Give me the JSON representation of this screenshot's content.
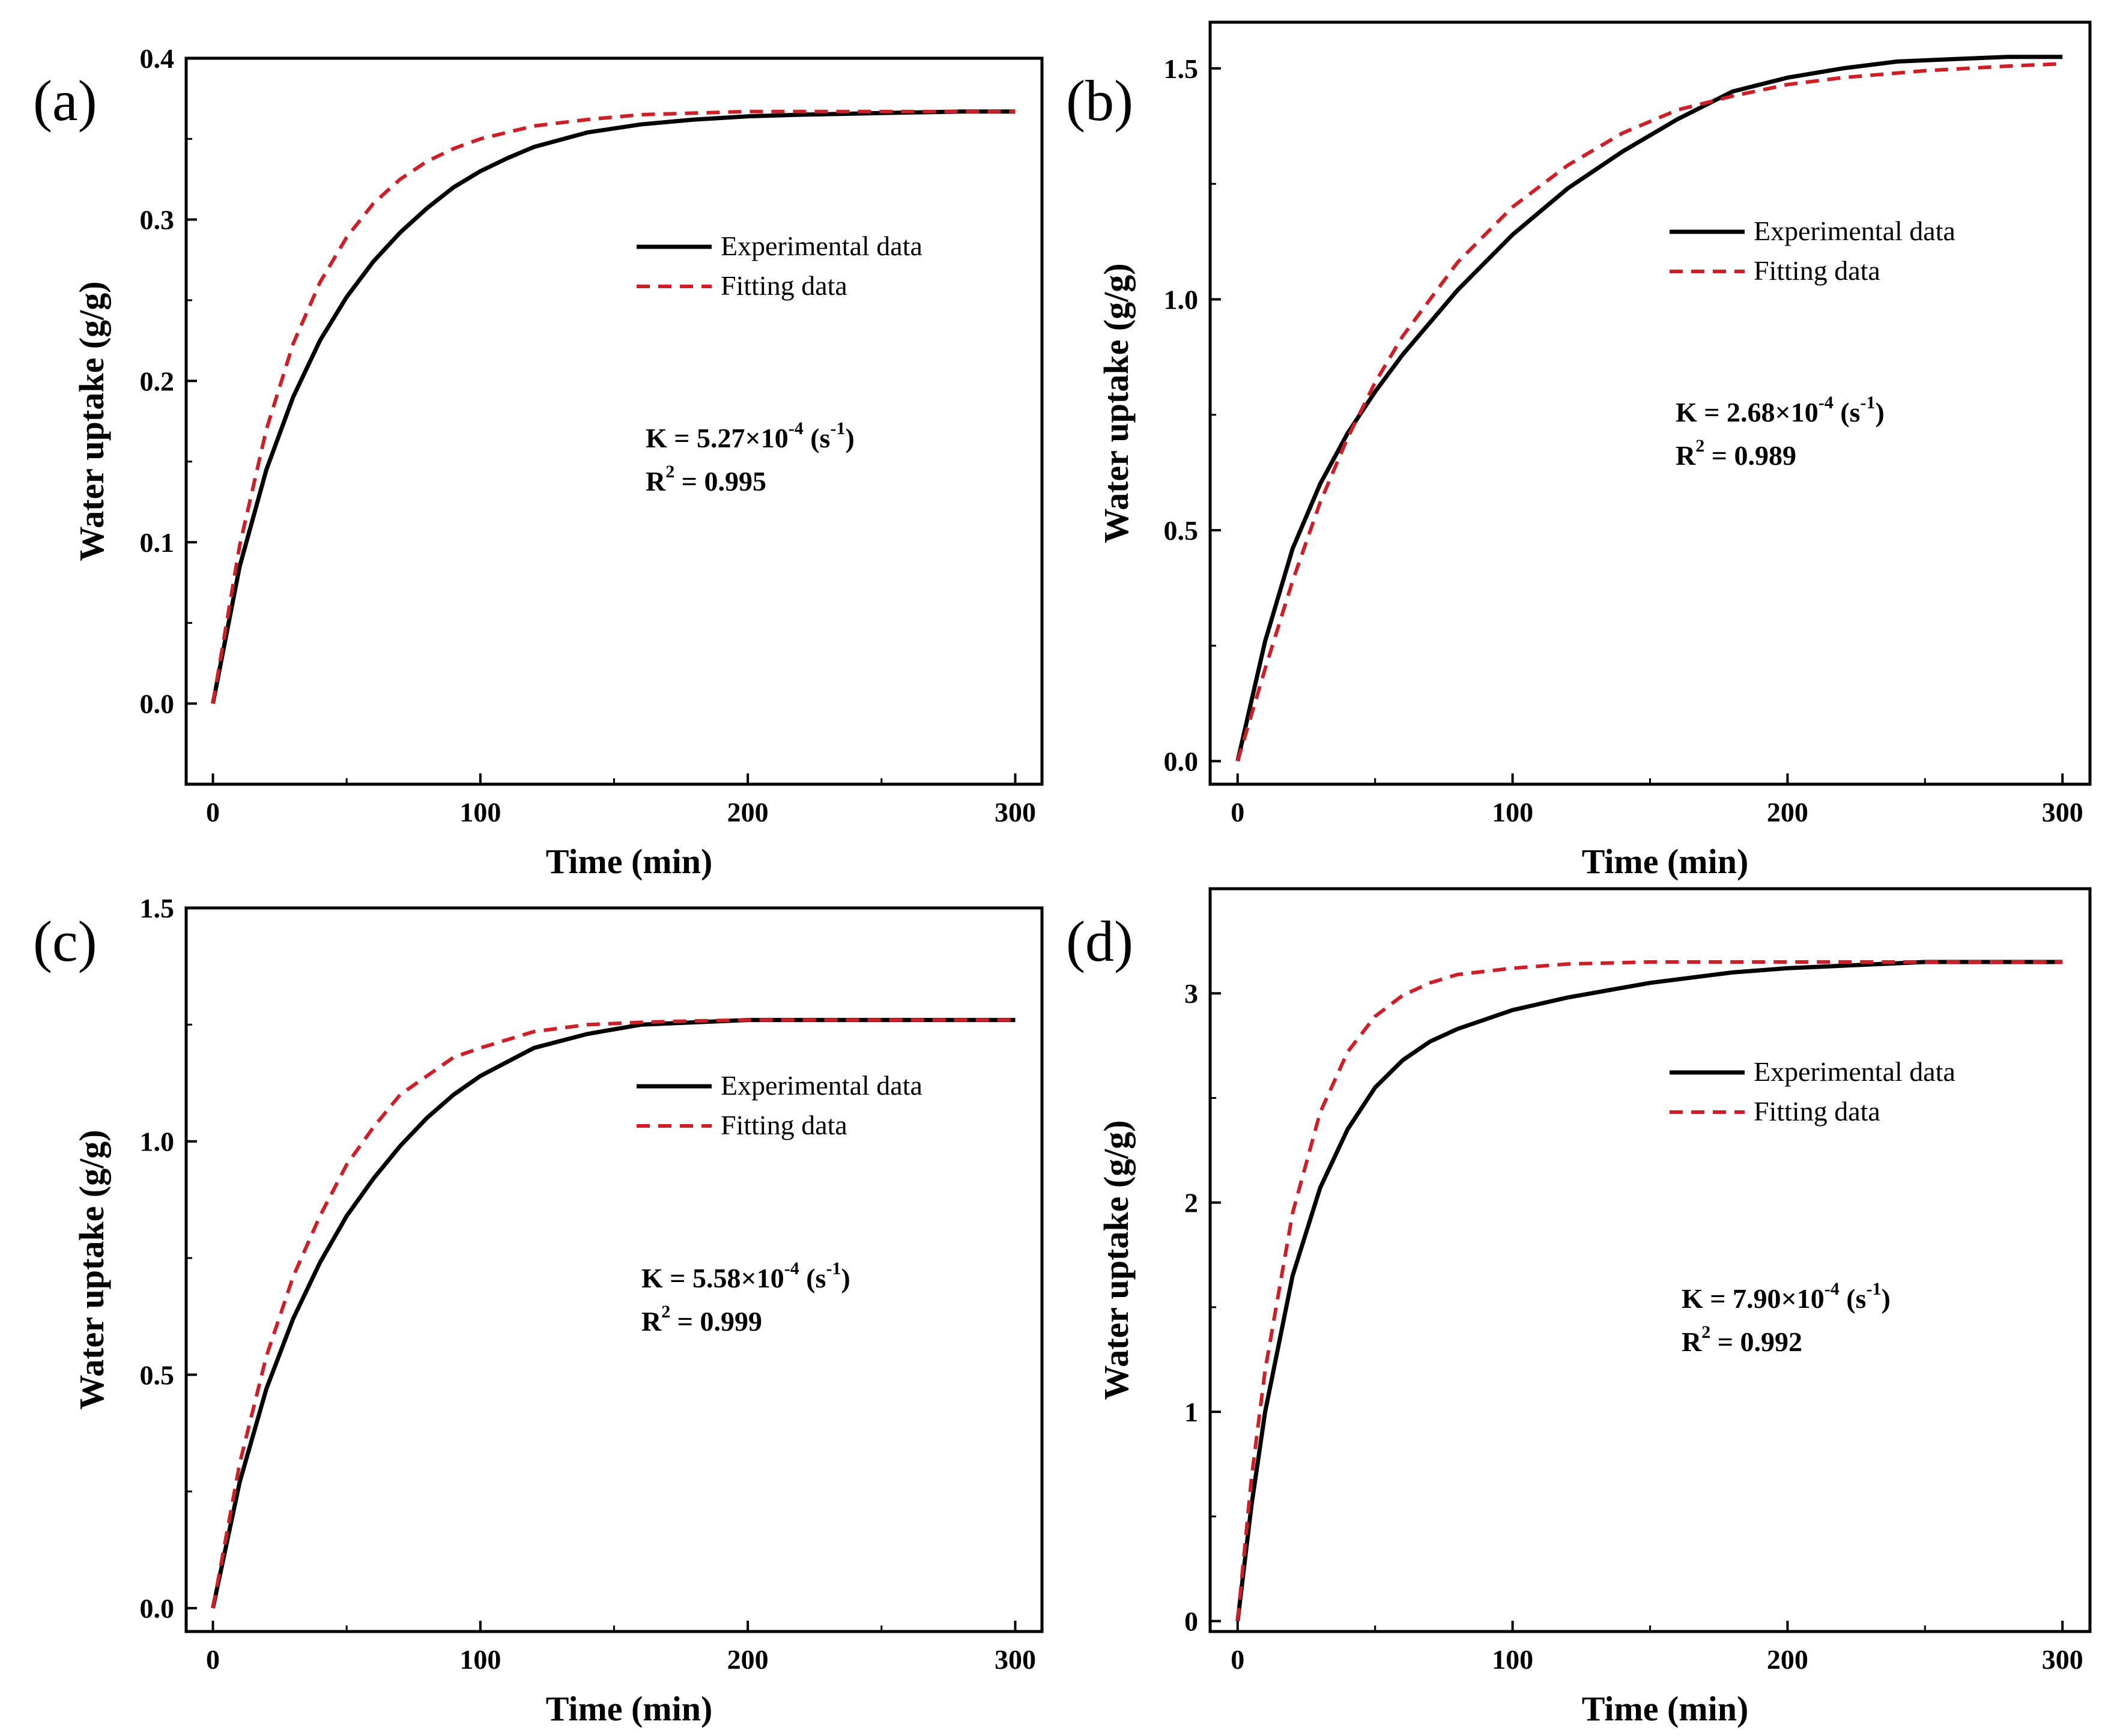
{
  "legend": {
    "experimental": "Experimental data",
    "fitting": "Fitting data"
  },
  "colors": {
    "experimental": "#000000",
    "fitting": "#cc1f28"
  },
  "chart_data": [
    {
      "panel": "(a)",
      "type": "line",
      "xlabel": "Time (min)",
      "ylabel": "Water uptake (g/g)",
      "xlim": [
        -10,
        310
      ],
      "ylim": [
        -0.05,
        0.4
      ],
      "xticks": [
        0,
        100,
        200,
        300
      ],
      "yticks": [
        0.0,
        0.1,
        0.2,
        0.3,
        0.4
      ],
      "ytick_labels": [
        "0.0",
        "0.1",
        "0.2",
        "0.3",
        "0.4"
      ],
      "legend_position": "upper-right",
      "annotation": {
        "k_prefix": "K = 5.27×10",
        "k_exp": "-4",
        "k_unit_open": " (s",
        "k_unit_exp": "-1",
        "k_unit_close": ")",
        "r2_prefix": "R",
        "r2_exp": "2",
        "r2_value": " = 0.995"
      },
      "series": [
        {
          "name": "Experimental data",
          "style": "solid",
          "x": [
            0,
            10,
            20,
            30,
            40,
            50,
            60,
            70,
            80,
            90,
            100,
            110,
            120,
            140,
            160,
            180,
            200,
            220,
            250,
            280,
            300
          ],
          "y": [
            0,
            0.085,
            0.145,
            0.19,
            0.225,
            0.252,
            0.274,
            0.292,
            0.307,
            0.32,
            0.33,
            0.338,
            0.345,
            0.354,
            0.359,
            0.362,
            0.364,
            0.365,
            0.366,
            0.367,
            0.367
          ]
        },
        {
          "name": "Fitting data",
          "style": "dashed",
          "x": [
            0,
            10,
            20,
            30,
            40,
            50,
            60,
            70,
            80,
            90,
            100,
            120,
            140,
            160,
            180,
            200,
            250,
            300
          ],
          "y": [
            0,
            0.098,
            0.17,
            0.223,
            0.261,
            0.289,
            0.31,
            0.325,
            0.336,
            0.344,
            0.35,
            0.358,
            0.362,
            0.365,
            0.366,
            0.367,
            0.367,
            0.367
          ]
        }
      ]
    },
    {
      "panel": "(b)",
      "type": "line",
      "xlabel": "Time (min)",
      "ylabel": "Water uptake (g/g)",
      "xlim": [
        -10,
        310
      ],
      "ylim": [
        -0.05,
        1.6
      ],
      "xticks": [
        0,
        100,
        200,
        300
      ],
      "yticks": [
        0.0,
        0.5,
        1.0,
        1.5
      ],
      "ytick_labels": [
        "0.0",
        "0.5",
        "1.0",
        "1.5"
      ],
      "legend_position": "upper-right",
      "annotation": {
        "k_prefix": "K = 2.68×10",
        "k_exp": "-4",
        "k_unit_open": " (s",
        "k_unit_exp": "-1",
        "k_unit_close": ")",
        "r2_prefix": "R",
        "r2_exp": "2",
        "r2_value": " = 0.989"
      },
      "series": [
        {
          "name": "Experimental data",
          "style": "solid",
          "x": [
            0,
            10,
            20,
            30,
            40,
            50,
            60,
            80,
            100,
            120,
            140,
            160,
            180,
            200,
            220,
            240,
            260,
            280,
            300
          ],
          "y": [
            0,
            0.26,
            0.46,
            0.6,
            0.71,
            0.8,
            0.88,
            1.02,
            1.14,
            1.24,
            1.32,
            1.39,
            1.45,
            1.48,
            1.5,
            1.515,
            1.52,
            1.525,
            1.525
          ]
        },
        {
          "name": "Fitting data",
          "style": "dashed",
          "x": [
            0,
            10,
            20,
            30,
            40,
            50,
            60,
            80,
            100,
            120,
            140,
            160,
            180,
            200,
            220,
            250,
            280,
            300
          ],
          "y": [
            0,
            0.2,
            0.39,
            0.56,
            0.7,
            0.82,
            0.92,
            1.08,
            1.2,
            1.29,
            1.36,
            1.41,
            1.44,
            1.465,
            1.48,
            1.495,
            1.505,
            1.51
          ]
        }
      ]
    },
    {
      "panel": "(c)",
      "type": "line",
      "xlabel": "Time (min)",
      "ylabel": "Water uptake (g/g)",
      "xlim": [
        -10,
        310
      ],
      "ylim": [
        -0.05,
        1.5
      ],
      "xticks": [
        0,
        100,
        200,
        300
      ],
      "yticks": [
        0.0,
        0.5,
        1.0,
        1.5
      ],
      "ytick_labels": [
        "0.0",
        "0.5",
        "1.0",
        "1.5"
      ],
      "legend_position": "upper-right",
      "annotation": {
        "k_prefix": "K = 5.58×10",
        "k_exp": "-4",
        "k_unit_open": " (s",
        "k_unit_exp": "-1",
        "k_unit_close": ")",
        "r2_prefix": "R",
        "r2_exp": "2",
        "r2_value": " = 0.999"
      },
      "series": [
        {
          "name": "Experimental data",
          "style": "solid",
          "x": [
            0,
            10,
            20,
            30,
            40,
            50,
            60,
            70,
            80,
            90,
            100,
            110,
            120,
            140,
            160,
            180,
            200,
            250,
            300
          ],
          "y": [
            0,
            0.27,
            0.47,
            0.62,
            0.74,
            0.84,
            0.92,
            0.99,
            1.05,
            1.1,
            1.14,
            1.17,
            1.2,
            1.23,
            1.25,
            1.255,
            1.26,
            1.26,
            1.26
          ]
        },
        {
          "name": "Fitting data",
          "style": "dashed",
          "x": [
            0,
            10,
            20,
            30,
            40,
            50,
            60,
            70,
            80,
            90,
            100,
            120,
            140,
            160,
            180,
            200,
            250,
            300
          ],
          "y": [
            0,
            0.31,
            0.54,
            0.71,
            0.84,
            0.95,
            1.03,
            1.1,
            1.14,
            1.18,
            1.2,
            1.235,
            1.25,
            1.255,
            1.258,
            1.26,
            1.26,
            1.26
          ]
        }
      ]
    },
    {
      "panel": "(d)",
      "type": "line",
      "xlabel": "Time (min)",
      "ylabel": "Water uptake (g/g)",
      "xlim": [
        -10,
        310
      ],
      "ylim": [
        -0.05,
        3.5
      ],
      "xticks": [
        0,
        100,
        200,
        300
      ],
      "yticks": [
        0,
        1,
        2,
        3
      ],
      "ytick_labels": [
        "0",
        "1",
        "2",
        "3"
      ],
      "legend_position": "upper-right",
      "annotation": {
        "k_prefix": "K = 7.90×10",
        "k_exp": "-4",
        "k_unit_open": " (s",
        "k_unit_exp": "-1",
        "k_unit_close": ")",
        "r2_prefix": "R",
        "r2_exp": "2",
        "r2_value": " = 0.992"
      },
      "series": [
        {
          "name": "Experimental data",
          "style": "solid",
          "x": [
            0,
            5,
            10,
            20,
            30,
            40,
            50,
            60,
            70,
            80,
            100,
            120,
            150,
            180,
            200,
            250,
            300
          ],
          "y": [
            0,
            0.55,
            1.0,
            1.65,
            2.07,
            2.35,
            2.55,
            2.68,
            2.77,
            2.83,
            2.92,
            2.98,
            3.05,
            3.1,
            3.12,
            3.15,
            3.15
          ]
        },
        {
          "name": "Fitting data",
          "style": "dashed",
          "x": [
            0,
            5,
            10,
            20,
            30,
            40,
            50,
            60,
            70,
            80,
            100,
            120,
            150,
            200,
            250,
            300
          ],
          "y": [
            0,
            0.68,
            1.2,
            1.95,
            2.43,
            2.72,
            2.89,
            2.99,
            3.05,
            3.09,
            3.12,
            3.14,
            3.15,
            3.15,
            3.15,
            3.15
          ]
        }
      ]
    }
  ]
}
